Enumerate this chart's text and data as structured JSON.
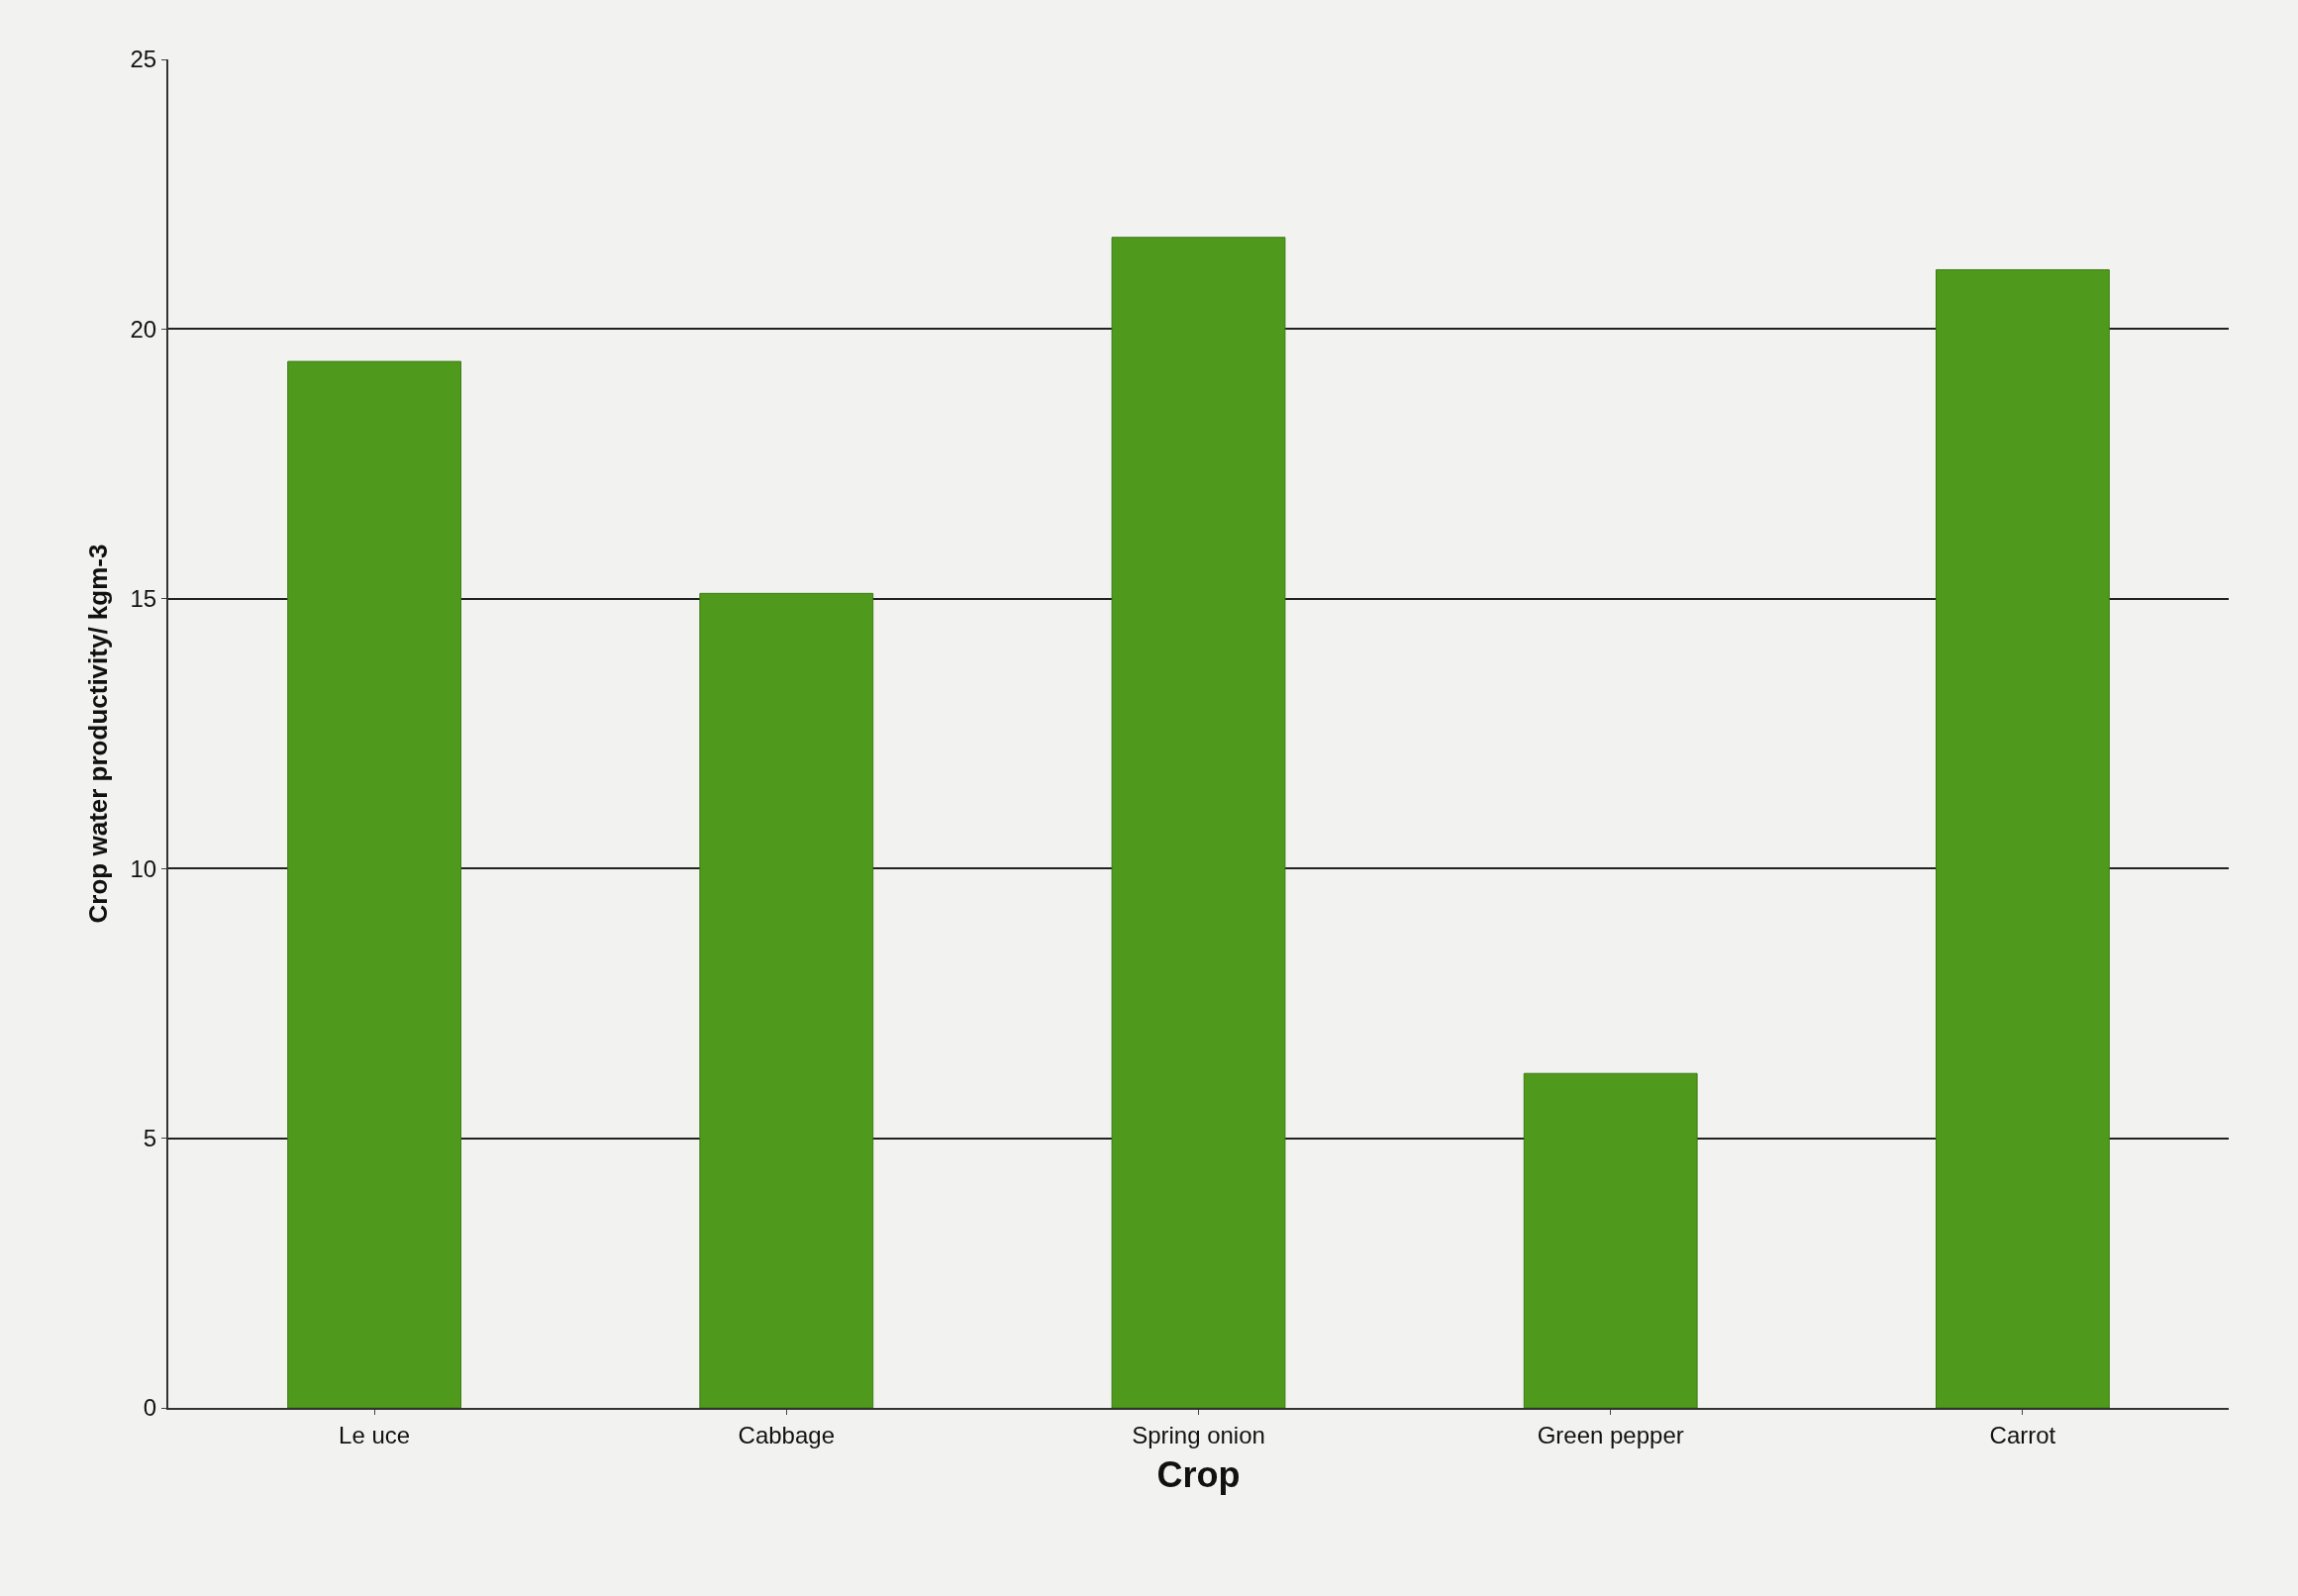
{
  "chart_data": {
    "type": "bar",
    "xlabel": "Crop",
    "ylabel": "Crop water productivity/ kgm-3",
    "categories": [
      "Le uce",
      "Cabbage",
      "Spring onion",
      "Green pepper",
      "Carrot"
    ],
    "values": [
      19.4,
      15.1,
      21.7,
      6.2,
      21.1
    ],
    "color": "#4f9a1c",
    "ylim": [
      0,
      25
    ],
    "yticks": [
      0,
      5,
      10,
      15,
      20,
      25
    ],
    "grid": "y",
    "legend": false
  }
}
